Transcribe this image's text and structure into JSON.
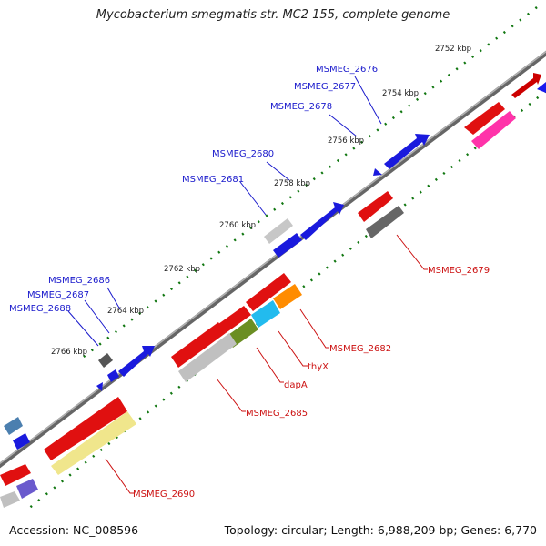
{
  "title": "Mycobacterium smegmatis str. MC2 155, complete genome",
  "footer": {
    "accession": "Accession: NC_008596",
    "summary": "Topology: circular; Length: 6,988,209 bp; Genes: 6,770"
  },
  "ticks": [
    "2752 kbp",
    "2754 kbp",
    "2756 kbp",
    "2758 kbp",
    "2760 kbp",
    "2762 kbp",
    "2764 kbp",
    "2766 kbp"
  ],
  "labels_top": [
    "MSMEG_2676",
    "MSMEG_2677",
    "MSMEG_2678",
    "MSMEG_2680",
    "MSMEG_2681",
    "MSMEG_2686",
    "MSMEG_2687",
    "MSMEG_2688"
  ],
  "labels_bottom": [
    "MSMEG_2679",
    "MSMEG_2682",
    "thyX",
    "dapA",
    "MSMEG_2685",
    "MSMEG_2690"
  ],
  "colors": {
    "forward": "#0a0adc",
    "reverse": "#ee1111",
    "backbone": "#808080",
    "tick": "#117711",
    "label_forward": "#1a1acc",
    "label_reverse": "#cc1111"
  }
}
